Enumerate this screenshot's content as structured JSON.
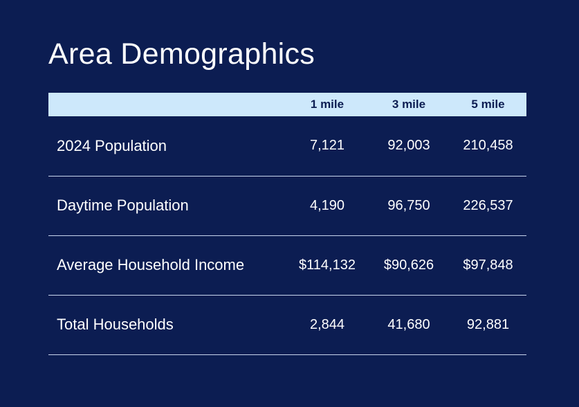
{
  "section": {
    "title": "Area Demographics"
  },
  "table": {
    "columns": [
      "",
      "1 mile",
      "3 mile",
      "5 mile"
    ],
    "rows": [
      {
        "label": "2024 Population",
        "values": [
          "7,121",
          "92,003",
          "210,458"
        ]
      },
      {
        "label": "Daytime Population",
        "values": [
          "4,190",
          "96,750",
          "226,537"
        ]
      },
      {
        "label": "Average Household Income",
        "values": [
          "$114,132",
          "$90,626",
          "$97,848"
        ]
      },
      {
        "label": "Total Households",
        "values": [
          "2,844",
          "41,680",
          "92,881"
        ]
      }
    ]
  },
  "colors": {
    "background": "#0c1d52",
    "header_band": "#cde8fb",
    "divider": "#c9d6ee"
  }
}
